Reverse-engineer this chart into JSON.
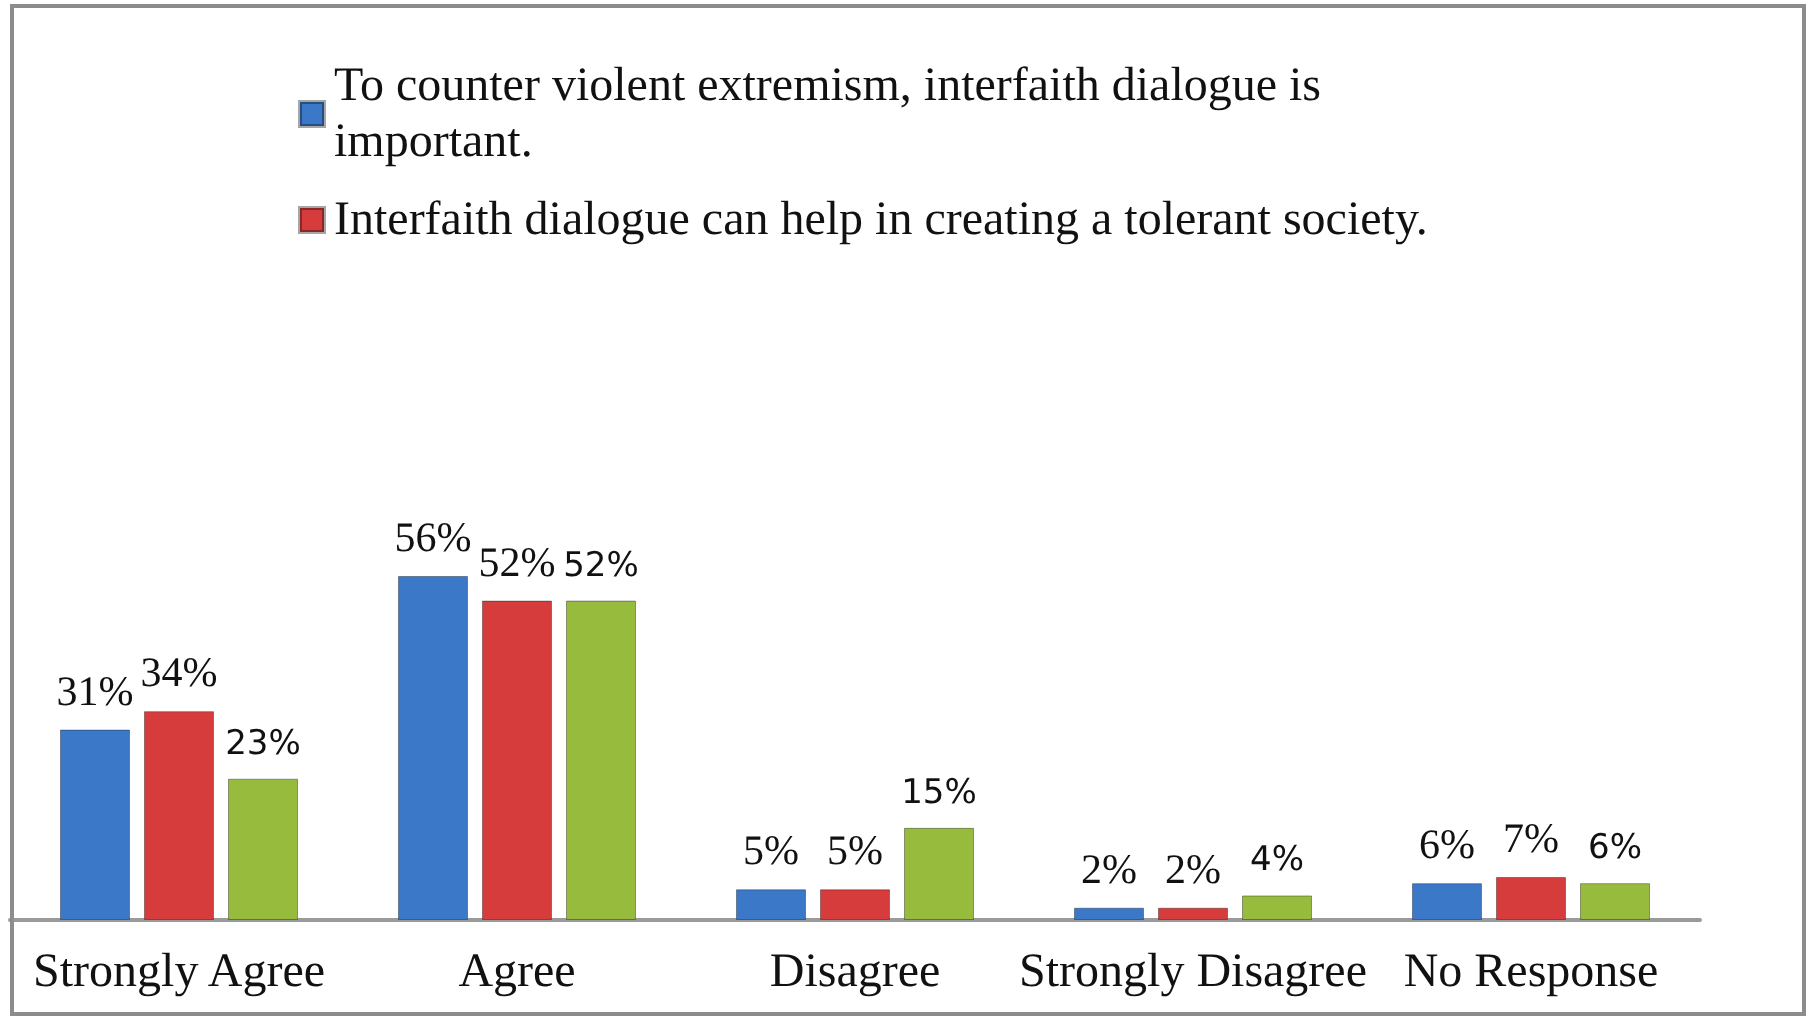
{
  "chart_data": {
    "type": "bar",
    "categories": [
      "Strongly Agree",
      "Agree",
      "Disagree",
      "Strongly Disagree",
      "No Response"
    ],
    "series": [
      {
        "name": "To counter violent extremism, interfaith dialogue is important.",
        "color": "#3b78c8",
        "values": [
          31,
          56,
          5,
          2,
          6
        ],
        "value_labels": [
          "31%",
          "56%",
          "5%",
          "2%",
          "6%"
        ]
      },
      {
        "name": "Interfaith dialogue can help in creating a tolerant society.",
        "color": "#d63c3b",
        "values": [
          34,
          52,
          5,
          2,
          7
        ],
        "value_labels": [
          "34%",
          "52%",
          "5%",
          "2%",
          "7%"
        ]
      },
      {
        "color": "#96bb3d",
        "values": [
          23,
          52,
          15,
          4,
          6
        ],
        "value_labels": [
          "23%",
          "52%",
          "15%",
          "4%",
          "6%"
        ]
      }
    ],
    "legend": "top",
    "grid": false
  }
}
